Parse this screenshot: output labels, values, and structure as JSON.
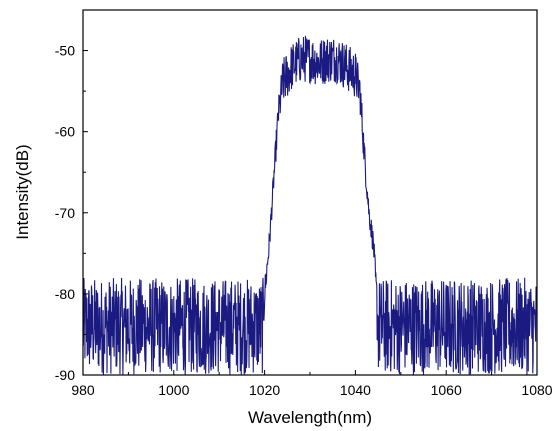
{
  "chart_data": {
    "type": "line",
    "title": "",
    "xlabel": "Wavelength(nm)",
    "ylabel": "Intensity(dB)",
    "xlim": [
      980,
      1080
    ],
    "ylim": [
      -90,
      -45
    ],
    "xticks": [
      980,
      1000,
      1020,
      1040,
      1060,
      1080
    ],
    "yticks": [
      -90,
      -80,
      -70,
      -60,
      -50
    ],
    "grid": false,
    "legend": "none",
    "series": [
      {
        "color": "#1a1a80",
        "x": [
          980,
          984,
          988,
          992,
          996,
          1000,
          1004,
          1008,
          1012,
          1016,
          1019.5,
          1020,
          1021,
          1022,
          1023,
          1024,
          1025,
          1026,
          1028,
          1030,
          1032,
          1034,
          1036,
          1038,
          1040,
          1041,
          1042,
          1043,
          1044,
          1044.5,
          1045,
          1048,
          1052,
          1056,
          1060,
          1064,
          1068,
          1072,
          1076,
          1080
        ],
        "y": [
          -84,
          -84,
          -84,
          -84,
          -84,
          -84,
          -84,
          -84,
          -84,
          -84,
          -84,
          -80,
          -74,
          -66,
          -58,
          -54,
          -53,
          -52,
          -51,
          -51,
          -51.5,
          -51,
          -51,
          -52,
          -53,
          -55,
          -63,
          -70,
          -74,
          -79,
          -84,
          -84,
          -84,
          -84,
          -84,
          -84,
          -84,
          -84,
          -84,
          -84
        ],
        "noise_db": [
          6,
          6,
          6,
          6,
          6,
          6,
          6,
          6,
          6,
          6,
          6,
          2,
          1.5,
          1.5,
          2,
          3,
          3,
          3,
          3,
          3,
          3,
          3,
          3,
          3,
          3,
          2.5,
          2,
          1.5,
          1.5,
          2,
          6,
          6,
          6,
          6,
          6,
          6,
          6,
          6,
          6,
          6
        ]
      }
    ]
  }
}
